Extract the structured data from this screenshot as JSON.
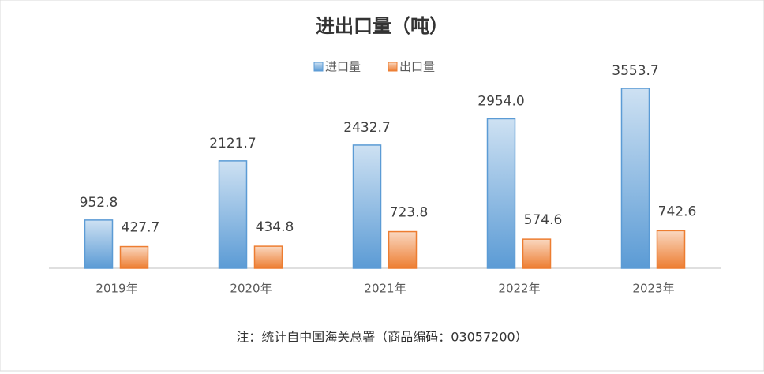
{
  "chart_data": {
    "type": "bar",
    "title": "进出口量（吨）",
    "note": "注：统计自中国海关总署（商品编码：03057200）",
    "categories": [
      "2019年",
      "2020年",
      "2021年",
      "2022年",
      "2023年"
    ],
    "series": [
      {
        "name": "进口量",
        "color": "#5b9bd5",
        "values": [
          952.8,
          2121.7,
          2432.7,
          2954.0,
          3553.7
        ],
        "value_labels": [
          "952.8",
          "2121.7",
          "2432.7",
          "2954.0",
          "3553.7"
        ]
      },
      {
        "name": "出口量",
        "color": "#ed7d31",
        "values": [
          427.7,
          434.8,
          723.8,
          574.6,
          742.6
        ]
      }
    ]
  }
}
